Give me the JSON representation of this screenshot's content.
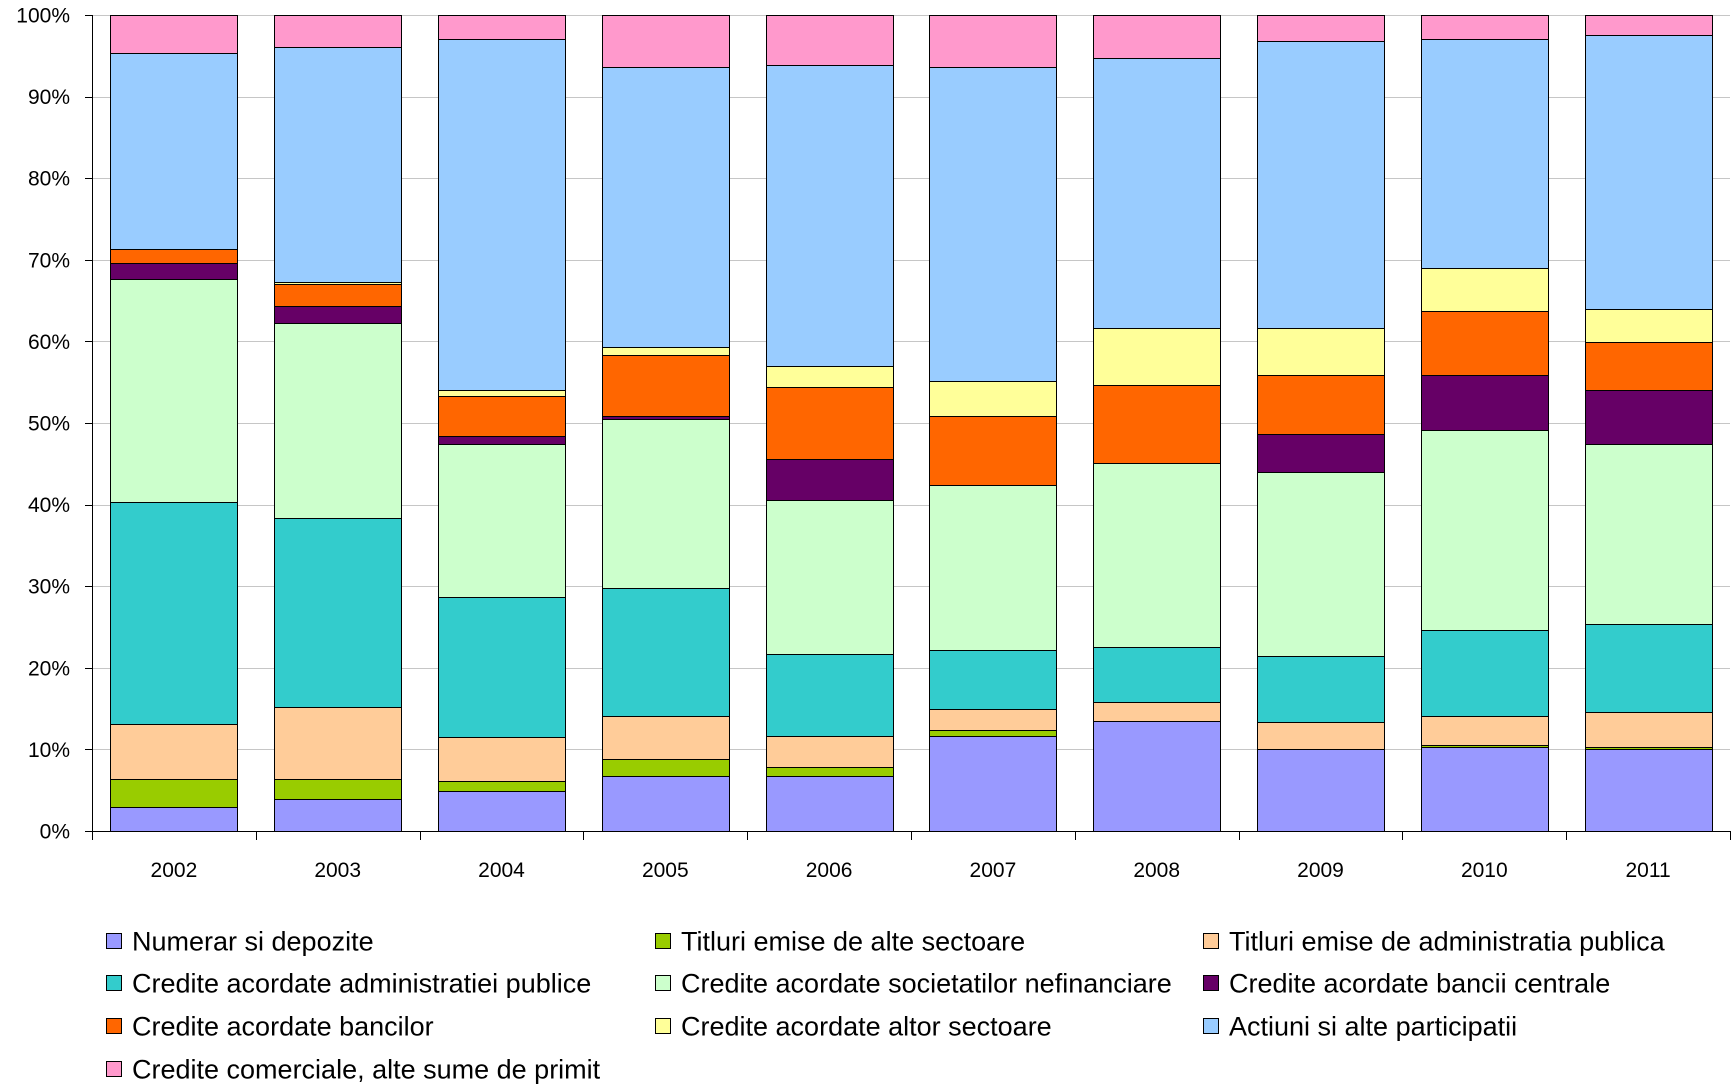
{
  "chart_data": {
    "type": "bar",
    "stacked": true,
    "normalized": true,
    "ylim": [
      0,
      100
    ],
    "y_tick_labels": [
      "0%",
      "10%",
      "20%",
      "30%",
      "40%",
      "50%",
      "60%",
      "70%",
      "80%",
      "90%",
      "100%"
    ],
    "grid": true,
    "legend_position": "bottom",
    "categories": [
      "2002",
      "2003",
      "2004",
      "2005",
      "2006",
      "2007",
      "2008",
      "2009",
      "2010",
      "2011"
    ],
    "series": [
      {
        "name": "Numerar si depozite",
        "color": "#9999FF",
        "values": [
          3.0,
          3.9,
          4.9,
          6.8,
          6.8,
          11.6,
          13.5,
          10.0,
          10.3,
          10.0
        ]
      },
      {
        "name": "Titluri emise de alte sectoare",
        "color": "#99CC00",
        "values": [
          3.4,
          2.5,
          1.2,
          2.0,
          1.0,
          0.8,
          0.0,
          0.0,
          0.3,
          0.3
        ]
      },
      {
        "name": "Titluri emise de administratia publica",
        "color": "#FFCC99",
        "values": [
          6.7,
          8.8,
          5.4,
          5.3,
          3.8,
          2.5,
          2.3,
          3.3,
          3.5,
          4.3
        ]
      },
      {
        "name": "Credite acordate administratiei publice",
        "color": "#33CCCC",
        "values": [
          27.2,
          23.1,
          17.2,
          15.7,
          10.1,
          7.3,
          6.7,
          8.1,
          10.5,
          10.8
        ]
      },
      {
        "name": "Credite acordate societatilor nefinanciare",
        "color": "#CCFFCC",
        "values": [
          27.4,
          23.9,
          18.7,
          20.7,
          18.9,
          20.2,
          22.6,
          22.6,
          24.5,
          22.0
        ]
      },
      {
        "name": "Credite acordate bancii centrale",
        "color": "#660066",
        "values": [
          1.9,
          2.1,
          1.0,
          0.4,
          5.0,
          0.0,
          0.0,
          4.6,
          6.8,
          6.7
        ]
      },
      {
        "name": "Credite acordate bancilor",
        "color": "#FF6600",
        "values": [
          1.7,
          2.7,
          4.9,
          7.4,
          8.8,
          8.5,
          9.6,
          7.3,
          7.8,
          5.8
        ]
      },
      {
        "name": "Credite acordate altor sectoare",
        "color": "#FFFF99",
        "values": [
          0.0,
          0.3,
          0.7,
          1.0,
          2.6,
          4.3,
          7.0,
          5.8,
          5.3,
          4.1
        ]
      },
      {
        "name": "Actiuni si alte participatii",
        "color": "#99CCFF",
        "values": [
          24.0,
          28.8,
          43.0,
          34.3,
          36.9,
          38.4,
          33.0,
          35.1,
          28.0,
          33.6
        ]
      },
      {
        "name": "Credite comerciale, alte sume de primit",
        "color": "#FF99CC",
        "values": [
          4.7,
          3.9,
          3.0,
          6.4,
          6.1,
          6.4,
          5.3,
          3.2,
          3.0,
          2.4
        ]
      }
    ]
  }
}
